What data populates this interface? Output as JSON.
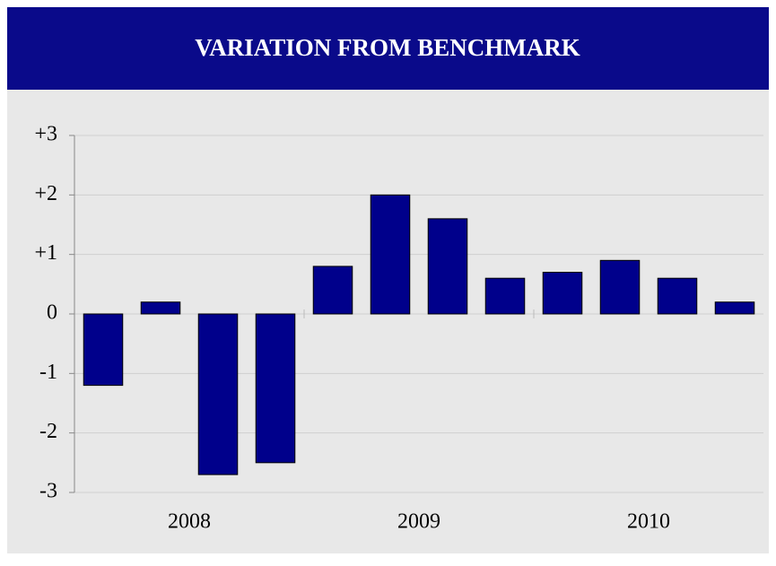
{
  "chart_data": {
    "type": "bar",
    "title": "VARIATION FROM BENCHMARK",
    "groups": [
      {
        "label": "2008",
        "values": [
          -1.2,
          0.2,
          -2.7,
          -2.5
        ]
      },
      {
        "label": "2009",
        "values": [
          0.8,
          2.0,
          1.6,
          0.6
        ]
      },
      {
        "label": "2010",
        "values": [
          0.7,
          0.9,
          0.6,
          0.2
        ]
      }
    ],
    "color": "#00008b",
    "ylim": [
      -3,
      3
    ],
    "yticks": [
      {
        "value": 3,
        "label": "+3"
      },
      {
        "value": 2,
        "label": "+2"
      },
      {
        "value": 1,
        "label": "+1"
      },
      0,
      -1,
      -2,
      -3
    ],
    "grid": true
  }
}
